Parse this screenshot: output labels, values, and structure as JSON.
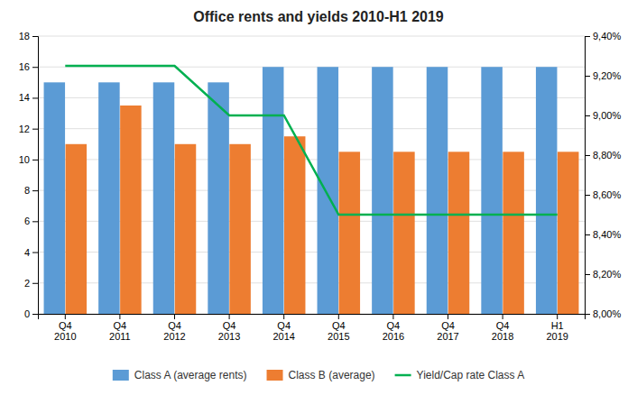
{
  "chart_data": {
    "type": "bar",
    "title": "Office rents and yields 2010-H1 2019",
    "categories": [
      "Q4\n2010",
      "Q4\n2011",
      "Q4\n2012",
      "Q4\n2013",
      "Q4\n2014",
      "Q4\n2015",
      "Q4\n2016",
      "Q4\n2017",
      "Q4\n2018",
      "H1\n2019"
    ],
    "series": [
      {
        "name": "Class A (average rents)",
        "color": "#5B9BD5",
        "values": [
          15,
          15,
          15,
          15,
          16,
          16,
          16,
          16,
          16,
          16
        ]
      },
      {
        "name": "Class B (average)",
        "color": "#ED7D31",
        "values": [
          11,
          13.5,
          11,
          11,
          11.5,
          10.5,
          10.5,
          10.5,
          10.5,
          10.5
        ]
      },
      {
        "name": "Yield/Cap rate Class A",
        "color": "#00B050",
        "type": "line",
        "axis": "y2",
        "values": [
          9.25,
          9.25,
          9.25,
          9.0,
          9.0,
          8.5,
          8.5,
          8.5,
          8.5,
          8.5
        ]
      }
    ],
    "ylim": [
      0,
      18
    ],
    "yticks": [
      0,
      2,
      4,
      6,
      8,
      10,
      12,
      14,
      16,
      18
    ],
    "y2lim": [
      8.0,
      9.4
    ],
    "y2ticks": [
      {
        "value": 8.0,
        "label": "8,00%"
      },
      {
        "value": 8.2,
        "label": "8,20%"
      },
      {
        "value": 8.4,
        "label": "8,40%"
      },
      {
        "value": 8.6,
        "label": "8,60%"
      },
      {
        "value": 8.8,
        "label": "8,80%"
      },
      {
        "value": 9.0,
        "label": "9,00%"
      },
      {
        "value": 9.2,
        "label": "9,20%"
      },
      {
        "value": 9.4,
        "label": "9,40%"
      }
    ],
    "grid": true,
    "legend": "bottom"
  }
}
